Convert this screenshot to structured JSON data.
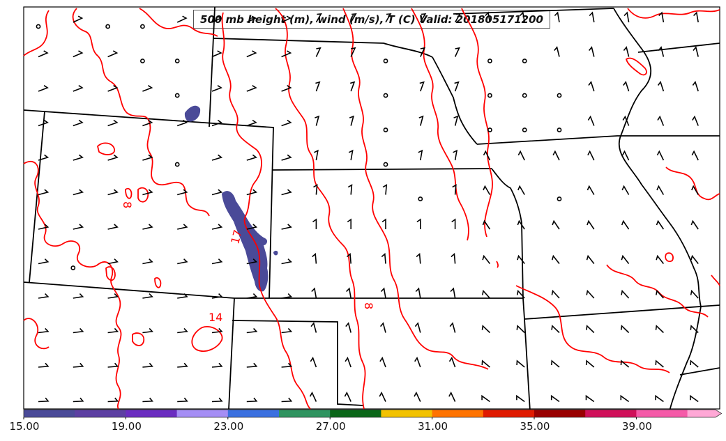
{
  "title": "500 mb height (m), wind (m/s), T (C) Valid: 201805171200",
  "contour_labels": [
    "14",
    "17",
    "8",
    "8"
  ],
  "colorbar": {
    "colors": [
      "#4a4a98",
      "#5c3fa2",
      "#6a2cc0",
      "#a58ef5",
      "#3a70e0",
      "#2f9460",
      "#0a6618",
      "#f2c200",
      "#ff7300",
      "#e01a00",
      "#990000",
      "#d0105a",
      "#f55aa8",
      "#ffa8d6"
    ],
    "ticks": [
      "15.00",
      "19.00",
      "23.00",
      "27.00",
      "31.00",
      "35.00",
      "39.00"
    ]
  },
  "style": {
    "contour_color": "#ff0000",
    "fill_color": "#4a4a98",
    "border_color": "#000000"
  }
}
